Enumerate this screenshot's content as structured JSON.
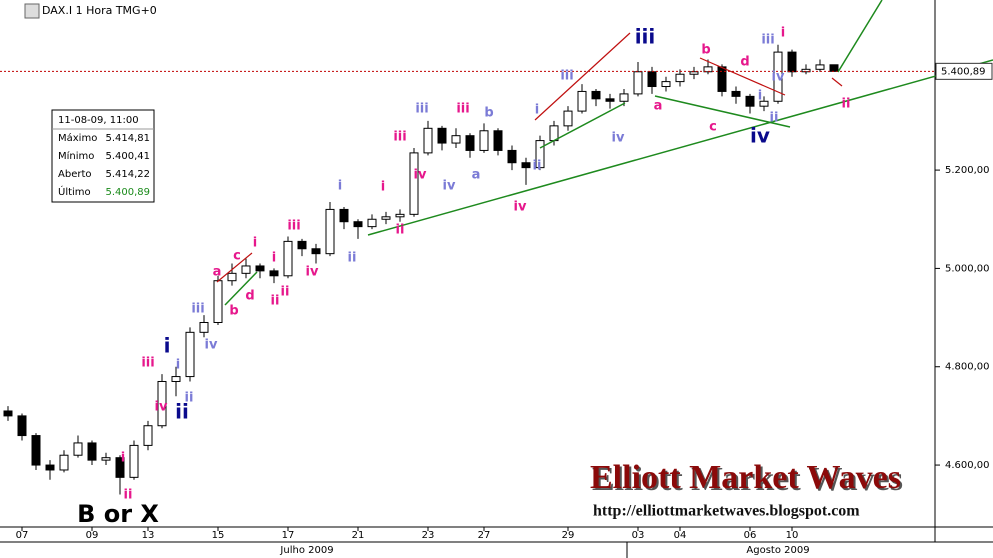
{
  "chart_data": {
    "type": "candlestick",
    "title": "DAX.I 1 Hora TMG+0",
    "categories": [
      null,
      "07",
      null,
      null,
      null,
      null,
      "09",
      null,
      null,
      null,
      "13",
      null,
      null,
      null,
      null,
      "15",
      null,
      null,
      null,
      null,
      "17",
      null,
      null,
      null,
      null,
      "21",
      null,
      null,
      null,
      null,
      "23",
      null,
      null,
      null,
      "27",
      null,
      null,
      null,
      null,
      null,
      "29",
      null,
      null,
      null,
      null,
      "03",
      null,
      null,
      "04",
      null,
      null,
      null,
      null,
      "06",
      null,
      null,
      "10",
      null,
      null,
      null
    ],
    "months": [
      "Julho 2009",
      "Agosto 2009"
    ],
    "ohlc": [
      [
        4710,
        4720,
        4690,
        4700
      ],
      [
        4700,
        4705,
        4650,
        4660
      ],
      [
        4660,
        4665,
        4590,
        4600
      ],
      [
        4600,
        4610,
        4570,
        4590
      ],
      [
        4590,
        4630,
        4585,
        4620
      ],
      [
        4620,
        4660,
        4615,
        4645
      ],
      [
        4645,
        4650,
        4600,
        4610
      ],
      [
        4610,
        4625,
        4600,
        4615
      ],
      [
        4615,
        4620,
        4540,
        4575
      ],
      [
        4575,
        4650,
        4570,
        4640
      ],
      [
        4640,
        4690,
        4630,
        4680
      ],
      [
        4680,
        4785,
        4675,
        4770
      ],
      [
        4770,
        4800,
        4740,
        4780
      ],
      [
        4780,
        4880,
        4770,
        4870
      ],
      [
        4870,
        4905,
        4860,
        4890
      ],
      [
        4890,
        4985,
        4885,
        4975
      ],
      [
        4975,
        5010,
        4965,
        4990
      ],
      [
        4990,
        5020,
        4980,
        5005
      ],
      [
        5005,
        5010,
        4980,
        4995
      ],
      [
        4995,
        5000,
        4970,
        4985
      ],
      [
        4985,
        5065,
        4980,
        5055
      ],
      [
        5055,
        5060,
        5025,
        5040
      ],
      [
        5040,
        5050,
        5010,
        5030
      ],
      [
        5030,
        5135,
        5025,
        5120
      ],
      [
        5120,
        5125,
        5080,
        5095
      ],
      [
        5095,
        5100,
        5060,
        5085
      ],
      [
        5085,
        5110,
        5080,
        5100
      ],
      [
        5100,
        5115,
        5090,
        5105
      ],
      [
        5105,
        5120,
        5095,
        5110
      ],
      [
        5110,
        5245,
        5105,
        5235
      ],
      [
        5235,
        5300,
        5230,
        5285
      ],
      [
        5285,
        5290,
        5240,
        5255
      ],
      [
        5255,
        5285,
        5245,
        5270
      ],
      [
        5270,
        5275,
        5225,
        5240
      ],
      [
        5240,
        5295,
        5235,
        5280
      ],
      [
        5280,
        5285,
        5230,
        5240
      ],
      [
        5240,
        5250,
        5200,
        5215
      ],
      [
        5215,
        5225,
        5170,
        5205
      ],
      [
        5205,
        5270,
        5200,
        5260
      ],
      [
        5260,
        5300,
        5250,
        5290
      ],
      [
        5290,
        5330,
        5280,
        5320
      ],
      [
        5320,
        5375,
        5315,
        5360
      ],
      [
        5360,
        5365,
        5330,
        5345
      ],
      [
        5345,
        5355,
        5325,
        5340
      ],
      [
        5340,
        5365,
        5330,
        5355
      ],
      [
        5355,
        5420,
        5350,
        5400
      ],
      [
        5400,
        5410,
        5355,
        5370
      ],
      [
        5370,
        5390,
        5360,
        5380
      ],
      [
        5380,
        5405,
        5370,
        5395
      ],
      [
        5395,
        5410,
        5385,
        5400
      ],
      [
        5400,
        5425,
        5395,
        5410
      ],
      [
        5410,
        5415,
        5350,
        5360
      ],
      [
        5360,
        5370,
        5335,
        5350
      ],
      [
        5350,
        5355,
        5315,
        5330
      ],
      [
        5330,
        5350,
        5320,
        5340
      ],
      [
        5340,
        5455,
        5335,
        5440
      ],
      [
        5440,
        5445,
        5390,
        5400
      ],
      [
        5400,
        5415,
        5395,
        5405
      ],
      [
        5405,
        5425,
        5400,
        5414
      ],
      [
        5414.22,
        5414.81,
        5400.41,
        5400.89
      ]
    ],
    "up_color": "#ffffff",
    "down_color": "#000000",
    "ylim": [
      4474,
      5546
    ],
    "yticks": [
      {
        "value": 4600,
        "label": "4.600,00"
      },
      {
        "value": 4800,
        "label": "4.800,00"
      },
      {
        "value": 5000,
        "label": "5.000,00"
      },
      {
        "value": 5200,
        "label": "5.200,00"
      }
    ],
    "grid": false,
    "last_price": {
      "value": 5400.89,
      "label": "5.400,89",
      "color": "#c00000"
    },
    "info_box": {
      "date": "11-08-09, 11:00",
      "rows": [
        [
          "Máximo",
          "5.414,81"
        ],
        [
          "Mínimo",
          "5.400,41"
        ],
        [
          "Aberto",
          "5.414,22"
        ],
        [
          "Último",
          "5.400,89"
        ]
      ]
    },
    "annotations": [
      {
        "text": "i",
        "color": "#e6178c"
      },
      {
        "text": "ii",
        "color": "#e6178c"
      },
      {
        "text": "iii",
        "color": "#e6178c"
      },
      {
        "text": "iv",
        "color": "#e6178c"
      },
      {
        "text": "i",
        "color": "#0a0a8c"
      },
      {
        "text": "ii",
        "color": "#0a0a8c"
      },
      {
        "text": "i",
        "color": "#7b7bd6"
      },
      {
        "text": "ii",
        "color": "#7b7bd6"
      },
      {
        "text": "iii",
        "color": "#7b7bd6"
      },
      {
        "text": "iv",
        "color": "#7b7bd6"
      },
      {
        "text": "a",
        "color": "#e6178c"
      },
      {
        "text": "b",
        "color": "#e6178c"
      },
      {
        "text": "c",
        "color": "#e6178c"
      },
      {
        "text": "d",
        "color": "#e6178c"
      },
      {
        "text": "i",
        "color": "#e6178c"
      },
      {
        "text": "i",
        "color": "#e6178c"
      },
      {
        "text": "ii",
        "color": "#e6178c"
      },
      {
        "text": "ii",
        "color": "#e6178c"
      },
      {
        "text": "iii",
        "color": "#e6178c"
      },
      {
        "text": "iv",
        "color": "#e6178c"
      },
      {
        "text": "i",
        "color": "#7b7bd6"
      },
      {
        "text": "ii",
        "color": "#7b7bd6"
      },
      {
        "text": "i",
        "color": "#e6178c"
      },
      {
        "text": "ii",
        "color": "#e6178c"
      },
      {
        "text": "iii",
        "color": "#e6178c"
      },
      {
        "text": "iv",
        "color": "#e6178c"
      },
      {
        "text": "iii",
        "color": "#7b7bd6"
      },
      {
        "text": "iv",
        "color": "#7b7bd6"
      },
      {
        "text": "iii",
        "color": "#e6178c"
      },
      {
        "text": "a",
        "color": "#7b7bd6"
      },
      {
        "text": "b",
        "color": "#7b7bd6"
      },
      {
        "text": "iv",
        "color": "#e6178c"
      },
      {
        "text": "i",
        "color": "#7b7bd6"
      },
      {
        "text": "ii",
        "color": "#7b7bd6"
      },
      {
        "text": "iii",
        "color": "#7b7bd6"
      },
      {
        "text": "iv",
        "color": "#7b7bd6"
      },
      {
        "text": "iii",
        "color": "#0a0a8c"
      },
      {
        "text": "a",
        "color": "#e6178c"
      },
      {
        "text": "b",
        "color": "#e6178c"
      },
      {
        "text": "c",
        "color": "#e6178c"
      },
      {
        "text": "d",
        "color": "#e6178c"
      },
      {
        "text": "i",
        "color": "#7b7bd6"
      },
      {
        "text": "iii",
        "color": "#7b7bd6"
      },
      {
        "text": "i",
        "color": "#e6178c"
      },
      {
        "text": "iv",
        "color": "#7b7bd6"
      },
      {
        "text": "ii",
        "color": "#7b7bd6"
      },
      {
        "text": "iv",
        "color": "#0a0a8c"
      },
      {
        "text": "ii",
        "color": "#e6178c"
      },
      {
        "text": "B or X",
        "color": "#000000"
      }
    ],
    "watermark": "Elliott Market Waves",
    "url": "http://elliottmarketwaves.blogspot.com"
  }
}
